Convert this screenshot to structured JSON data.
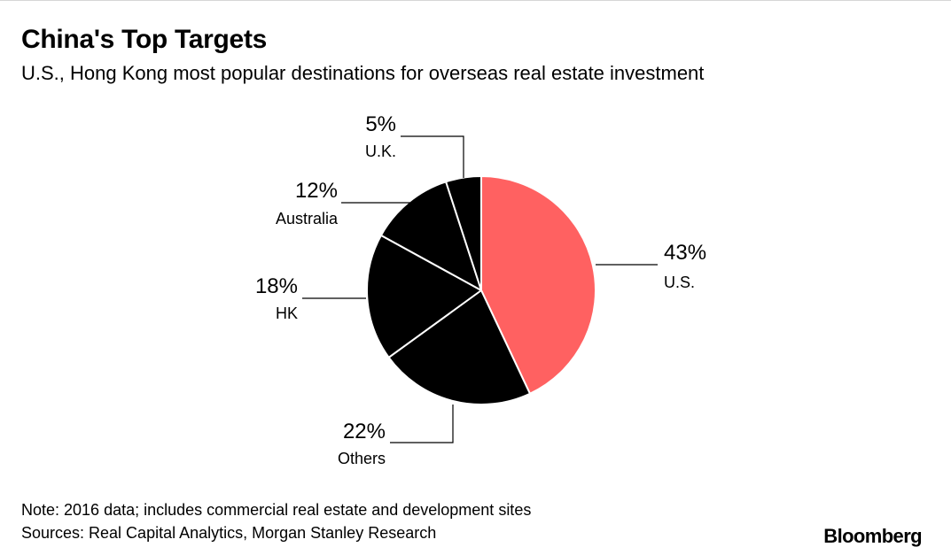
{
  "header": {
    "title": "China's Top Targets",
    "subtitle": "U.S., Hong Kong most popular destinations for overseas real estate investment"
  },
  "footer": {
    "note": "Note: 2016 data; includes commercial real estate and development sites",
    "sources": "Sources: Real Capital Analytics, Morgan Stanley Research",
    "brand": "Bloomberg"
  },
  "colors": {
    "highlight": "#ff6161",
    "other": "#000000",
    "separator": "#ffffff",
    "leader": "#000000"
  },
  "chart_data": {
    "type": "pie",
    "title": "China's Top Targets",
    "subtitle": "U.S., Hong Kong most popular destinations for overseas real estate investment",
    "start": "12 o'clock",
    "direction": "clockwise",
    "slices": [
      {
        "label": "U.S.",
        "value": 43,
        "value_label": "43%",
        "color": "#ff6161"
      },
      {
        "label": "Others",
        "value": 22,
        "value_label": "22%",
        "color": "#000000"
      },
      {
        "label": "HK",
        "value": 18,
        "value_label": "18%",
        "color": "#000000"
      },
      {
        "label": "Australia",
        "value": 12,
        "value_label": "12%",
        "color": "#000000"
      },
      {
        "label": "U.K.",
        "value": 5,
        "value_label": "5%",
        "color": "#000000"
      }
    ]
  }
}
